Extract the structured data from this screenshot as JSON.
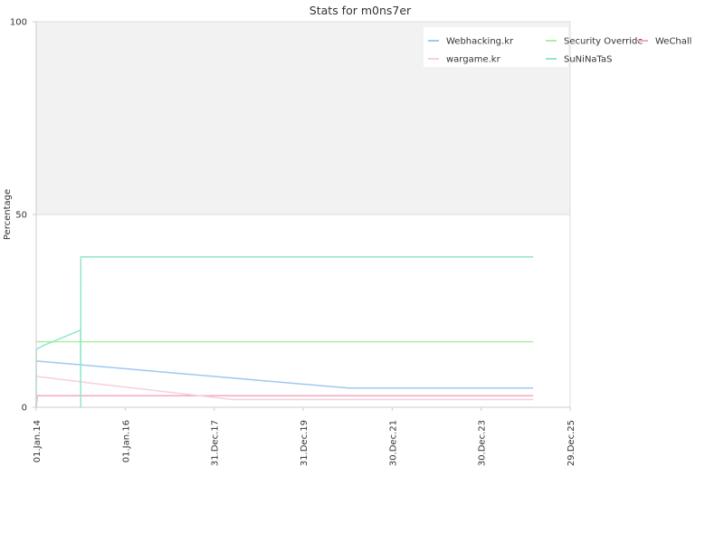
{
  "chart_data": {
    "type": "line",
    "title": "Stats for m0ns7er",
    "xlabel": "",
    "ylabel": "Percentage",
    "ylim": [
      0,
      100
    ],
    "y_ticks": [
      "0",
      "50",
      "100"
    ],
    "x_ticks": [
      "01.Jan.14",
      "01.Jan.16",
      "31.Dec.17",
      "31.Dec.19",
      "30.Dec.21",
      "30.Dec.23",
      "29.Dec.25"
    ],
    "xlim": [
      "2014-01-01",
      "2025-12-29"
    ],
    "legend_position": "top-right",
    "background_bands": [
      {
        "from": 50,
        "to": 100,
        "color": "#f2f2f2"
      },
      {
        "from": 0,
        "to": 50,
        "color": "#ffffff"
      }
    ],
    "series": [
      {
        "name": "Webhacking.kr",
        "color": "#a0c8f0",
        "points": [
          [
            "2014-01-01",
            12
          ],
          [
            "2015-01-01",
            11
          ],
          [
            "2017-01-01",
            9
          ],
          [
            "2019-01-01",
            7
          ],
          [
            "2021-01-01",
            5
          ],
          [
            "2025-03-01",
            5
          ]
        ]
      },
      {
        "name": "Security Override",
        "color": "#a8f0a8",
        "points": [
          [
            "2014-01-01",
            17
          ],
          [
            "2025-03-01",
            17
          ]
        ]
      },
      {
        "name": "WeChall",
        "color": "#f4a8c0",
        "points": [
          [
            "2014-01-01",
            0
          ],
          [
            "2014-01-10",
            3
          ],
          [
            "2025-03-01",
            3
          ]
        ]
      },
      {
        "name": "wargame.kr",
        "color": "#f8d0d8",
        "points": [
          [
            "2014-01-01",
            8
          ],
          [
            "2015-06-01",
            6
          ],
          [
            "2018-06-01",
            2
          ],
          [
            "2025-03-01",
            2
          ]
        ]
      },
      {
        "name": "SuNiNaTaS",
        "color": "#90e8c8",
        "points": [
          [
            "2014-01-01",
            0
          ],
          [
            "2014-01-02",
            15
          ],
          [
            "2014-03-01",
            16
          ],
          [
            "2014-12-31",
            20
          ],
          [
            "2015-01-01",
            0
          ],
          [
            "2015-01-02",
            39
          ],
          [
            "2025-03-01",
            39
          ]
        ]
      }
    ]
  }
}
